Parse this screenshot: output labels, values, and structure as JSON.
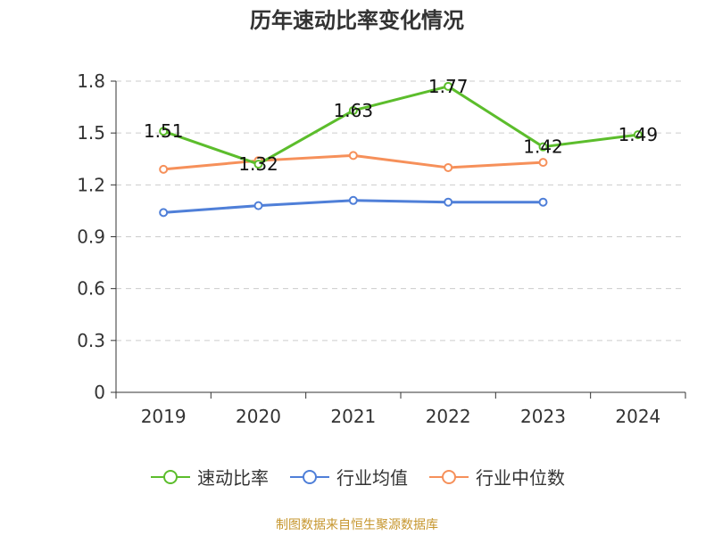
{
  "title": "历年速动比率变化情况",
  "source": "制图数据来自恒生聚源数据库",
  "colors": {
    "axis": "#333333",
    "grid": "#cccccc",
    "text": "#333333",
    "source": "#c6962e"
  },
  "chart_data": {
    "type": "line",
    "title": "历年速动比率变化情况",
    "categories": [
      "2019",
      "2020",
      "2021",
      "2022",
      "2023",
      "2024"
    ],
    "ylim": [
      0,
      1.8
    ],
    "yticks": [
      "0",
      "0.3",
      "0.6",
      "0.9",
      "1.2",
      "1.5",
      "1.8"
    ],
    "grid": true,
    "legend_position": "bottom",
    "series": [
      {
        "name": "速动比率",
        "color": "#5cbd2c",
        "values": [
          1.51,
          1.32,
          1.63,
          1.77,
          1.42,
          1.49
        ],
        "labels": [
          "1.51",
          "1.32",
          "1.63",
          "1.77",
          "1.42",
          "1.49"
        ]
      },
      {
        "name": "行业均值",
        "color": "#4f7fd8",
        "values": [
          1.04,
          1.08,
          1.11,
          1.1,
          1.1,
          null
        ]
      },
      {
        "name": "行业中位数",
        "color": "#f6905a",
        "values": [
          1.29,
          1.34,
          1.37,
          1.3,
          1.33,
          null
        ]
      }
    ]
  }
}
